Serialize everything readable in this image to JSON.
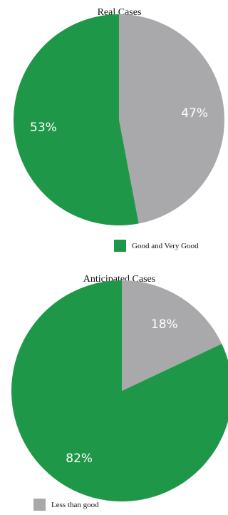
{
  "colors": {
    "green": "#1e9848",
    "gray": "#a9a9ab"
  },
  "chart_data": [
    {
      "type": "pie",
      "title": "Real Cases",
      "slices": [
        {
          "name": "Less than good",
          "value": 47,
          "label": "47%",
          "color": "#a9a9ab"
        },
        {
          "name": "Good and Very Good",
          "value": 53,
          "label": "53%",
          "color": "#1e9848"
        }
      ],
      "legend": {
        "label": "Good and Very Good",
        "color": "#1e9848",
        "placement": "bottom-right"
      }
    },
    {
      "type": "pie",
      "title": "Anticipated Cases",
      "slices": [
        {
          "name": "Less than good",
          "value": 18,
          "label": "18%",
          "color": "#a9a9ab"
        },
        {
          "name": "Good and Very Good",
          "value": 82,
          "label": "82%",
          "color": "#1e9848"
        }
      ],
      "legend": {
        "label": "Less than good",
        "color": "#a9a9ab",
        "placement": "bottom-left"
      }
    }
  ]
}
